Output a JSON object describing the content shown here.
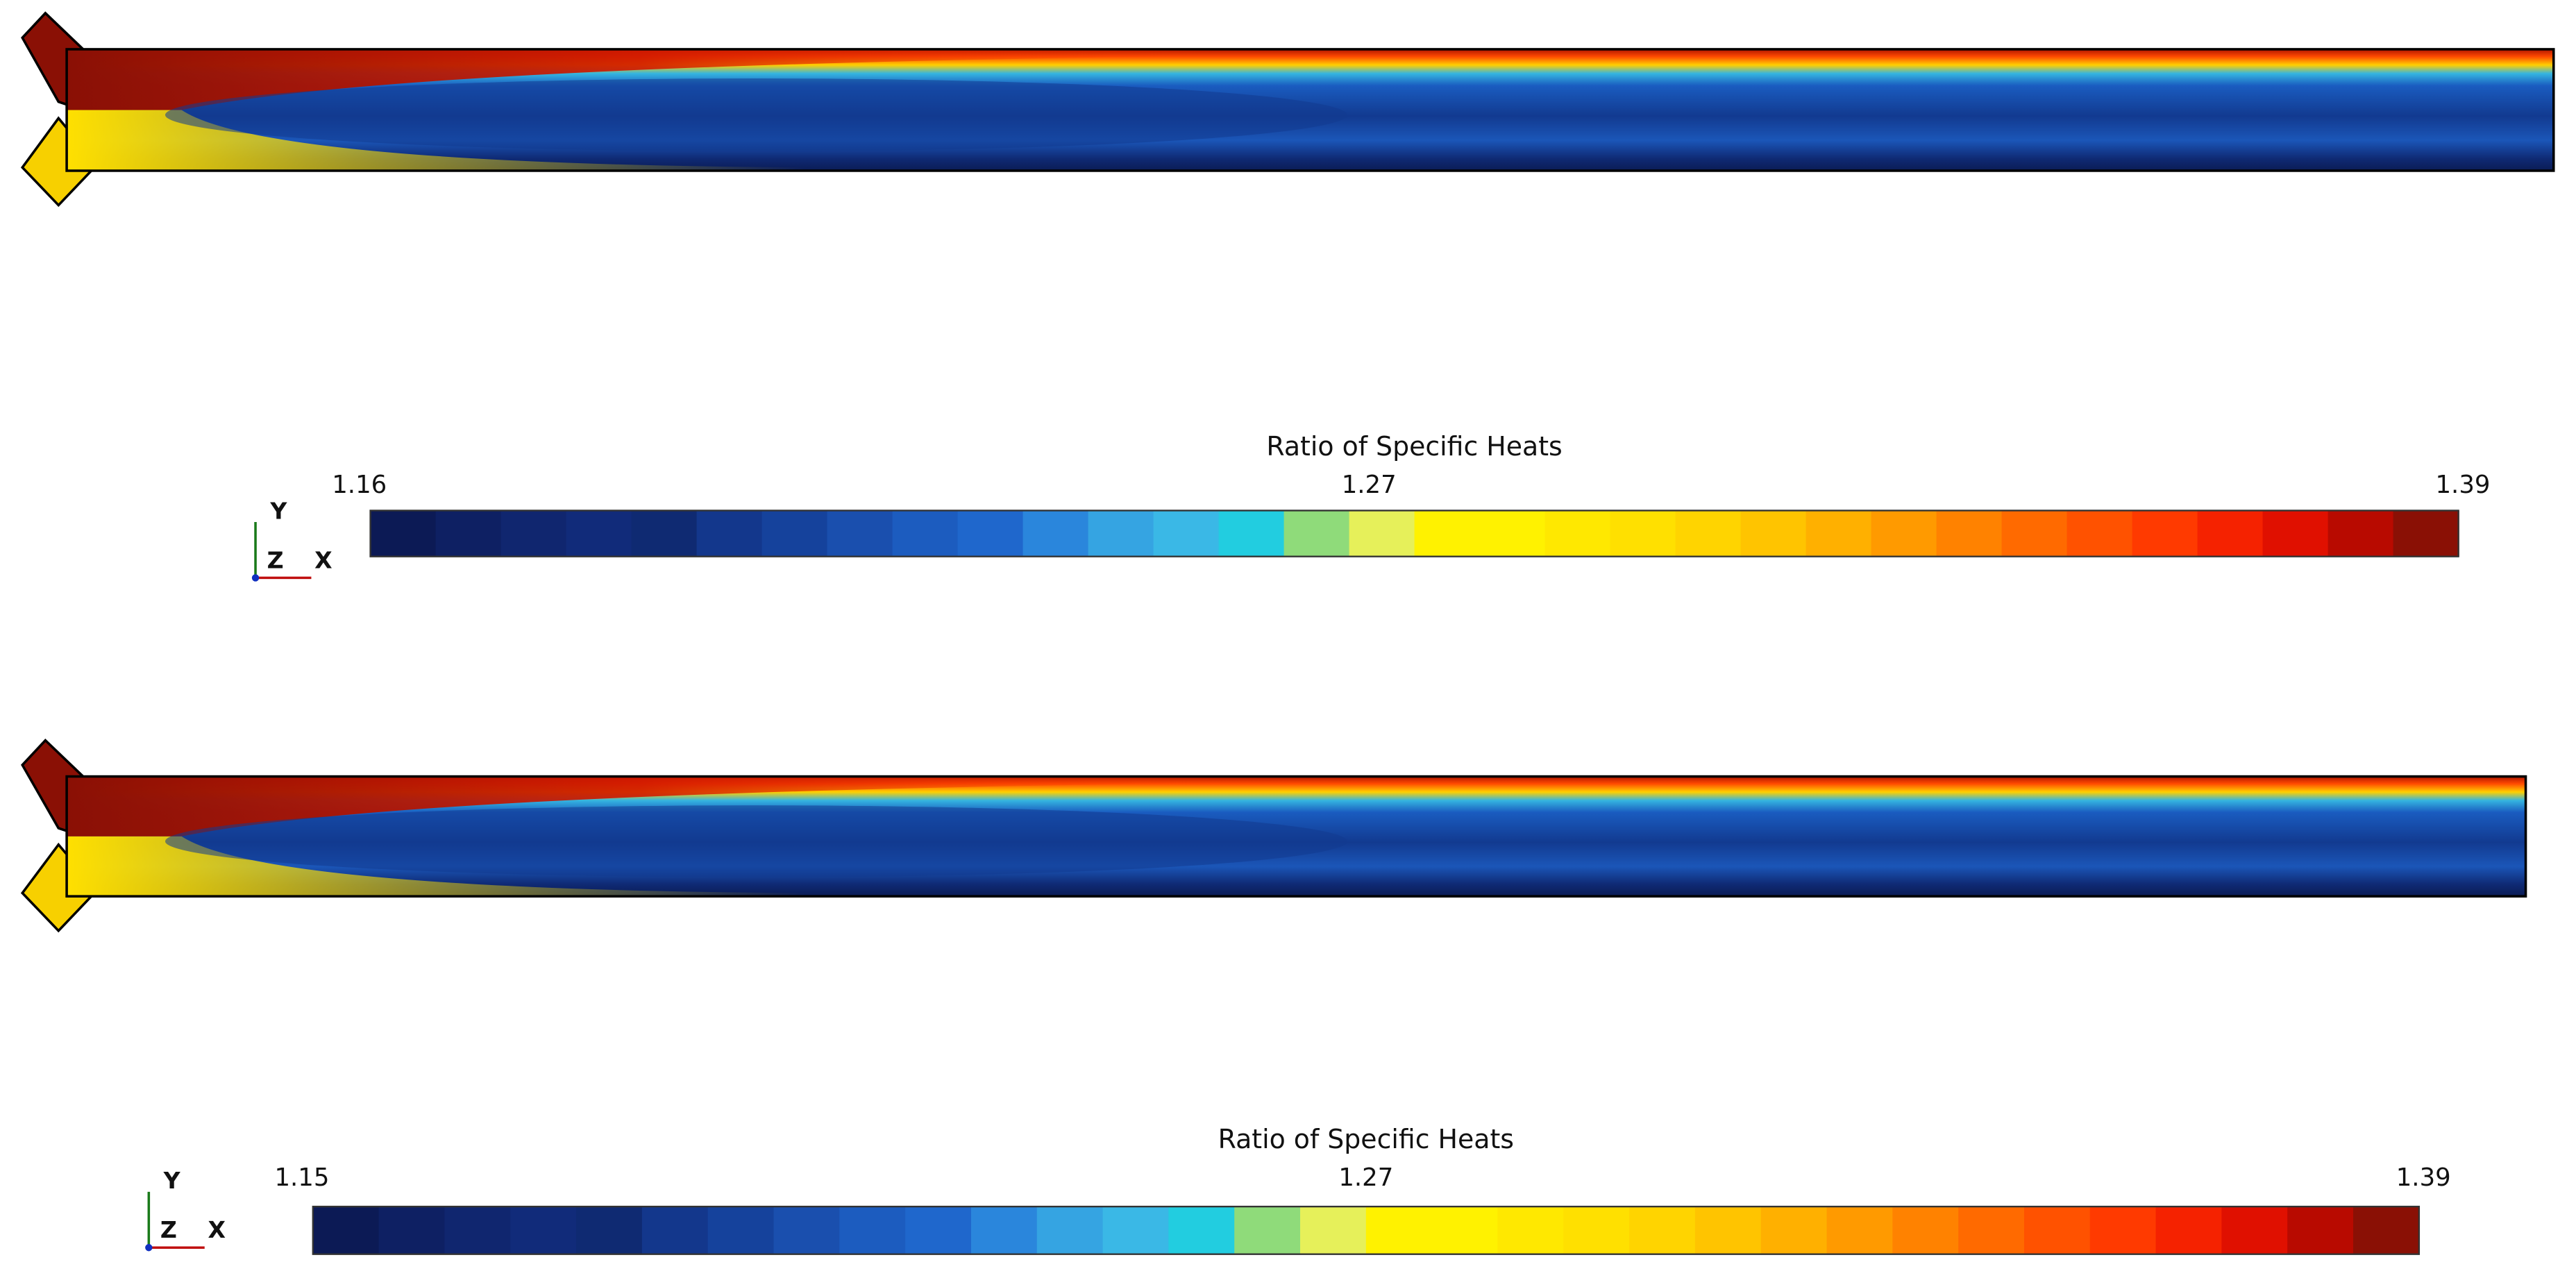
{
  "panels": [
    {
      "colorbar": {
        "title": "Ratio of Specific Heats",
        "ticks": [
          1.16,
          1.27,
          1.39
        ]
      },
      "axes": {
        "y": "Y",
        "z": "Z",
        "x": "X"
      }
    },
    {
      "colorbar": {
        "title": "Ratio of Specific Heats",
        "ticks": [
          1.15,
          1.27,
          1.39
        ]
      },
      "axes": {
        "y": "Y",
        "z": "Z",
        "x": "X"
      }
    }
  ]
}
